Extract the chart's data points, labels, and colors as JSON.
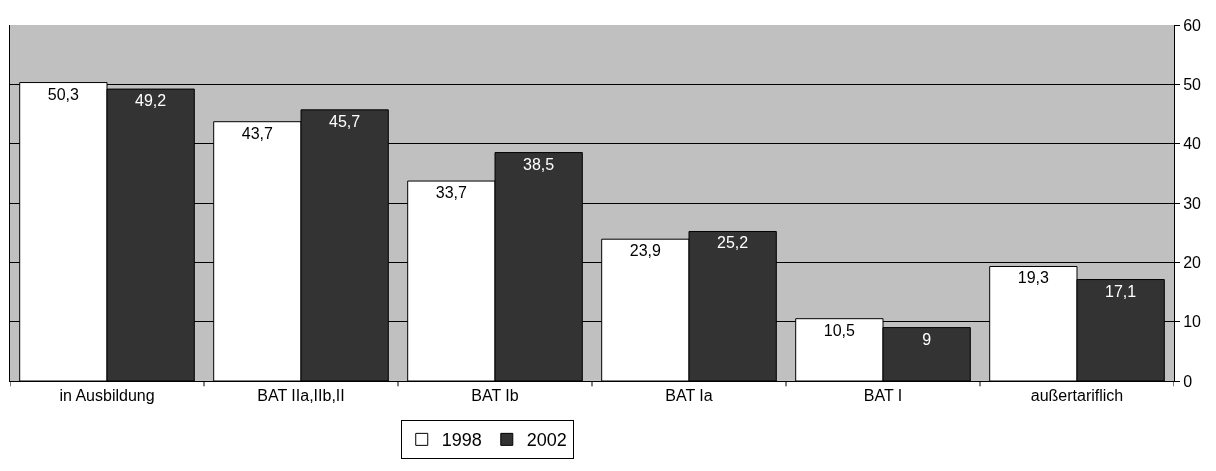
{
  "chart_data": {
    "type": "bar",
    "categories": [
      "in Ausbildung",
      "BAT IIa,IIb,II",
      "BAT Ib",
      "BAT Ia",
      "BAT I",
      "außertariflich"
    ],
    "series": [
      {
        "name": "1998",
        "color": "#ffffff",
        "values": [
          50.3,
          43.7,
          33.7,
          23.9,
          10.5,
          19.3
        ],
        "value_labels": [
          "50,3",
          "43,7",
          "33,7",
          "23,9",
          "10,5",
          "19,3"
        ]
      },
      {
        "name": "2002",
        "color": "#333333",
        "values": [
          49.2,
          45.7,
          38.5,
          25.2,
          9,
          17.1
        ],
        "value_labels": [
          "49,2",
          "45,7",
          "38,5",
          "25,2",
          "9",
          "17,1"
        ]
      }
    ],
    "ylim": [
      0,
      60
    ],
    "yticks": [
      0,
      10,
      20,
      30,
      40,
      50,
      60
    ],
    "grid": "y",
    "legend": "bottom"
  }
}
